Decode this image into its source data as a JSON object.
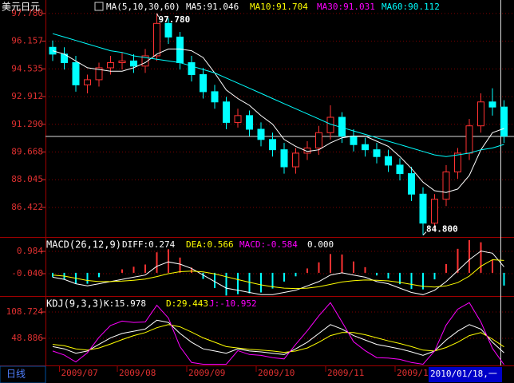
{
  "period_label": "日线",
  "cursor_date": "2010/01/18,一",
  "chart_data": [
    {
      "type": "candlestick",
      "title": "美元日元",
      "indicator": "MA(5,10,30,60)",
      "legend": [
        {
          "label": "MA5:91.046",
          "color": "#ffffff"
        },
        {
          "label": "MA10:91.704",
          "color": "#ffff00"
        },
        {
          "label": "MA30:91.031",
          "color": "#ff00ff"
        },
        {
          "label": "MA60:90.112",
          "color": "#00ffff"
        }
      ],
      "categories": [
        null,
        "2009/07",
        null,
        null,
        null,
        null,
        "2009/08",
        null,
        null,
        null,
        null,
        null,
        "2009/09",
        null,
        null,
        null,
        null,
        null,
        "2009/10",
        null,
        null,
        null,
        null,
        null,
        "2009/11",
        null,
        null,
        null,
        null,
        null,
        "2009/1",
        null,
        null,
        null,
        null,
        null,
        null,
        null,
        null,
        null
      ],
      "open": [
        95.8,
        95.4,
        94.9,
        93.6,
        93.9,
        94.6,
        94.9,
        95.0,
        94.7,
        95.3,
        97.2,
        96.4,
        94.9,
        94.2,
        93.2,
        92.6,
        91.4,
        91.8,
        91.0,
        90.4,
        89.8,
        88.8,
        89.6,
        89.9,
        90.8,
        91.7,
        90.6,
        90.1,
        89.8,
        89.4,
        88.9,
        88.4,
        87.2,
        85.5,
        86.9,
        88.5,
        89.6,
        91.2,
        92.6,
        92.3
      ],
      "high": [
        96.2,
        95.8,
        95.3,
        94.2,
        94.9,
        95.3,
        95.5,
        95.4,
        95.7,
        97.78,
        97.5,
        96.7,
        95.3,
        94.6,
        93.6,
        92.9,
        92.2,
        92.1,
        91.4,
        90.8,
        90.2,
        89.9,
        90.3,
        91.2,
        92.4,
        92.0,
        91.0,
        90.5,
        90.2,
        89.8,
        89.3,
        88.8,
        87.6,
        87.2,
        88.9,
        89.9,
        91.6,
        93.1,
        93.4,
        92.7
      ],
      "low": [
        95.0,
        94.5,
        93.2,
        93.1,
        93.5,
        94.2,
        94.5,
        94.3,
        94.3,
        95.0,
        96.0,
        94.5,
        93.8,
        92.8,
        92.2,
        91.0,
        91.1,
        90.6,
        90.0,
        89.4,
        88.4,
        88.4,
        89.2,
        89.5,
        90.4,
        90.2,
        89.7,
        89.4,
        89.0,
        88.5,
        88.0,
        86.8,
        84.8,
        85.1,
        86.5,
        88.1,
        89.2,
        90.8,
        91.8,
        90.2
      ],
      "close": [
        95.4,
        94.9,
        93.6,
        93.9,
        94.6,
        94.9,
        95.0,
        94.7,
        95.3,
        97.2,
        96.4,
        94.9,
        94.2,
        93.2,
        92.6,
        91.4,
        91.8,
        91.0,
        90.4,
        89.8,
        88.8,
        89.6,
        89.9,
        90.8,
        91.7,
        90.6,
        90.1,
        89.8,
        89.4,
        88.9,
        88.4,
        87.2,
        85.5,
        86.9,
        88.5,
        89.6,
        91.2,
        92.6,
        92.3,
        90.6
      ],
      "up_color": "#ff3232",
      "down_color": "#00ffff",
      "lines": [
        {
          "color": "#ffffff",
          "values": [
            95.6,
            95.4,
            95.0,
            94.6,
            94.5,
            94.4,
            94.4,
            94.6,
            94.9,
            95.4,
            95.7,
            95.7,
            95.6,
            95.2,
            94.3,
            93.3,
            92.8,
            92.4,
            91.8,
            91.3,
            90.4,
            90.0,
            89.7,
            89.8,
            90.2,
            90.5,
            90.6,
            90.6,
            90.3,
            90.0,
            89.4,
            88.7,
            87.9,
            87.4,
            87.3,
            87.5,
            88.3,
            89.8,
            90.8,
            91.046
          ]
        },
        {
          "color": "#00ffff",
          "values": [
            96.6,
            96.4,
            96.2,
            96.0,
            95.8,
            95.6,
            95.5,
            95.3,
            95.2,
            95.1,
            95.0,
            94.9,
            94.7,
            94.5,
            94.3,
            94.0,
            93.7,
            93.4,
            93.1,
            92.8,
            92.5,
            92.2,
            91.9,
            91.6,
            91.3,
            91.1,
            90.9,
            90.7,
            90.5,
            90.3,
            90.1,
            89.9,
            89.7,
            89.5,
            89.4,
            89.5,
            89.6,
            89.8,
            89.9,
            90.112
          ]
        }
      ],
      "max_label": {
        "value": 97.78,
        "label": "97.780"
      },
      "min_label": {
        "value": 84.8,
        "label": "84.800"
      },
      "ylim": [
        84.69,
        98.57
      ],
      "yticks": [
        {
          "value": 97.78,
          "label": "97.780"
        },
        96.157,
        94.535,
        92.912,
        {
          "value": 91.29,
          "label": "91.290"
        },
        89.668,
        88.045,
        86.422
      ],
      "grid": true
    },
    {
      "type": "macd",
      "title": "MACD(26,12,9)",
      "legend": [
        {
          "label": "DIFF:0.274",
          "color": "#ffffff"
        },
        {
          "label": "DEA:0.566",
          "color": "#ffff00"
        },
        {
          "label": "MACD:-0.584",
          "color": "#ff00ff"
        },
        {
          "label": "0.000",
          "color": "#ffffff"
        }
      ],
      "series": [
        {
          "color": "#ffffff",
          "values": [
            -0.2,
            -0.3,
            -0.5,
            -0.6,
            -0.5,
            -0.4,
            -0.3,
            -0.2,
            -0.1,
            0.3,
            0.5,
            0.4,
            0.2,
            -0.1,
            -0.4,
            -0.7,
            -0.8,
            -0.9,
            -1.0,
            -1.0,
            -0.9,
            -0.8,
            -0.6,
            -0.4,
            -0.1,
            0.0,
            -0.1,
            -0.2,
            -0.4,
            -0.5,
            -0.7,
            -0.9,
            -1.0,
            -0.8,
            -0.4,
            0.1,
            0.6,
            1.0,
            0.9,
            0.274
          ]
        },
        {
          "color": "#ffff00",
          "values": [
            -0.1,
            -0.15,
            -0.25,
            -0.35,
            -0.4,
            -0.4,
            -0.38,
            -0.34,
            -0.29,
            -0.17,
            -0.04,
            0.05,
            0.08,
            0.04,
            -0.05,
            -0.18,
            -0.31,
            -0.43,
            -0.55,
            -0.64,
            -0.7,
            -0.72,
            -0.7,
            -0.64,
            -0.53,
            -0.42,
            -0.36,
            -0.33,
            -0.34,
            -0.37,
            -0.44,
            -0.53,
            -0.62,
            -0.65,
            -0.6,
            -0.45,
            -0.15,
            0.3,
            0.6,
            0.566
          ]
        }
      ],
      "bars": [
        -0.2,
        -0.3,
        -0.5,
        -0.5,
        -0.2,
        0.0,
        0.16,
        0.28,
        0.38,
        0.94,
        1.08,
        0.7,
        0.24,
        -0.28,
        -0.7,
        -1.04,
        -0.98,
        -0.94,
        -0.9,
        -0.72,
        -0.4,
        -0.16,
        0.2,
        0.48,
        0.86,
        0.84,
        0.52,
        0.26,
        -0.12,
        -0.26,
        -0.52,
        -0.74,
        -0.76,
        -0.3,
        0.4,
        1.1,
        1.5,
        1.4,
        0.6,
        -0.584
      ],
      "up_color": "#ff3232",
      "down_color": "#00ffff",
      "ylim": [
        -1.027,
        1.606
      ],
      "yticks": [
        0.984,
        {
          "value": -0.04,
          "label": "-0.040"
        }
      ],
      "grid": true
    },
    {
      "type": "kdj",
      "title": "KDJ(9,3,3)",
      "legend": [
        {
          "label": "K:15.978",
          "color": "#ffffff"
        },
        {
          "label": "D:29.443",
          "color": "#ffff00"
        },
        {
          "label": "J:-10.952",
          "color": "#ff00ff"
        }
      ],
      "series": [
        {
          "color": "#ffffff",
          "values": [
            30,
            25,
            15,
            20,
            35,
            50,
            60,
            65,
            70,
            90,
            85,
            60,
            40,
            25,
            20,
            15,
            25,
            20,
            18,
            15,
            12,
            25,
            40,
            60,
            80,
            70,
            55,
            45,
            35,
            30,
            25,
            18,
            10,
            20,
            45,
            65,
            80,
            70,
            40,
            15.978
          ]
        },
        {
          "color": "#ffff00",
          "values": [
            35,
            32,
            25,
            22,
            27,
            36,
            46,
            55,
            62,
            73,
            80,
            75,
            63,
            50,
            40,
            30,
            27,
            24,
            22,
            20,
            17,
            20,
            27,
            40,
            55,
            62,
            62,
            57,
            50,
            43,
            37,
            30,
            22,
            20,
            28,
            40,
            55,
            62,
            47,
            29.443
          ]
        },
        {
          "color": "#ff00ff",
          "values": [
            20,
            11,
            -5,
            16,
            51,
            78,
            88,
            85,
            86,
            124,
            95,
            30,
            -6,
            -10,
            -10,
            -10,
            21,
            12,
            10,
            5,
            2,
            35,
            66,
            100,
            130,
            86,
            41,
            21,
            5,
            4,
            1,
            -6,
            -10,
            20,
            79,
            115,
            130,
            86,
            26,
            -10.952
          ]
        }
      ],
      "ylim": [
        -12.8,
        143.2
      ],
      "yticks": [
        108.724,
        48.886
      ],
      "grid": true
    }
  ]
}
